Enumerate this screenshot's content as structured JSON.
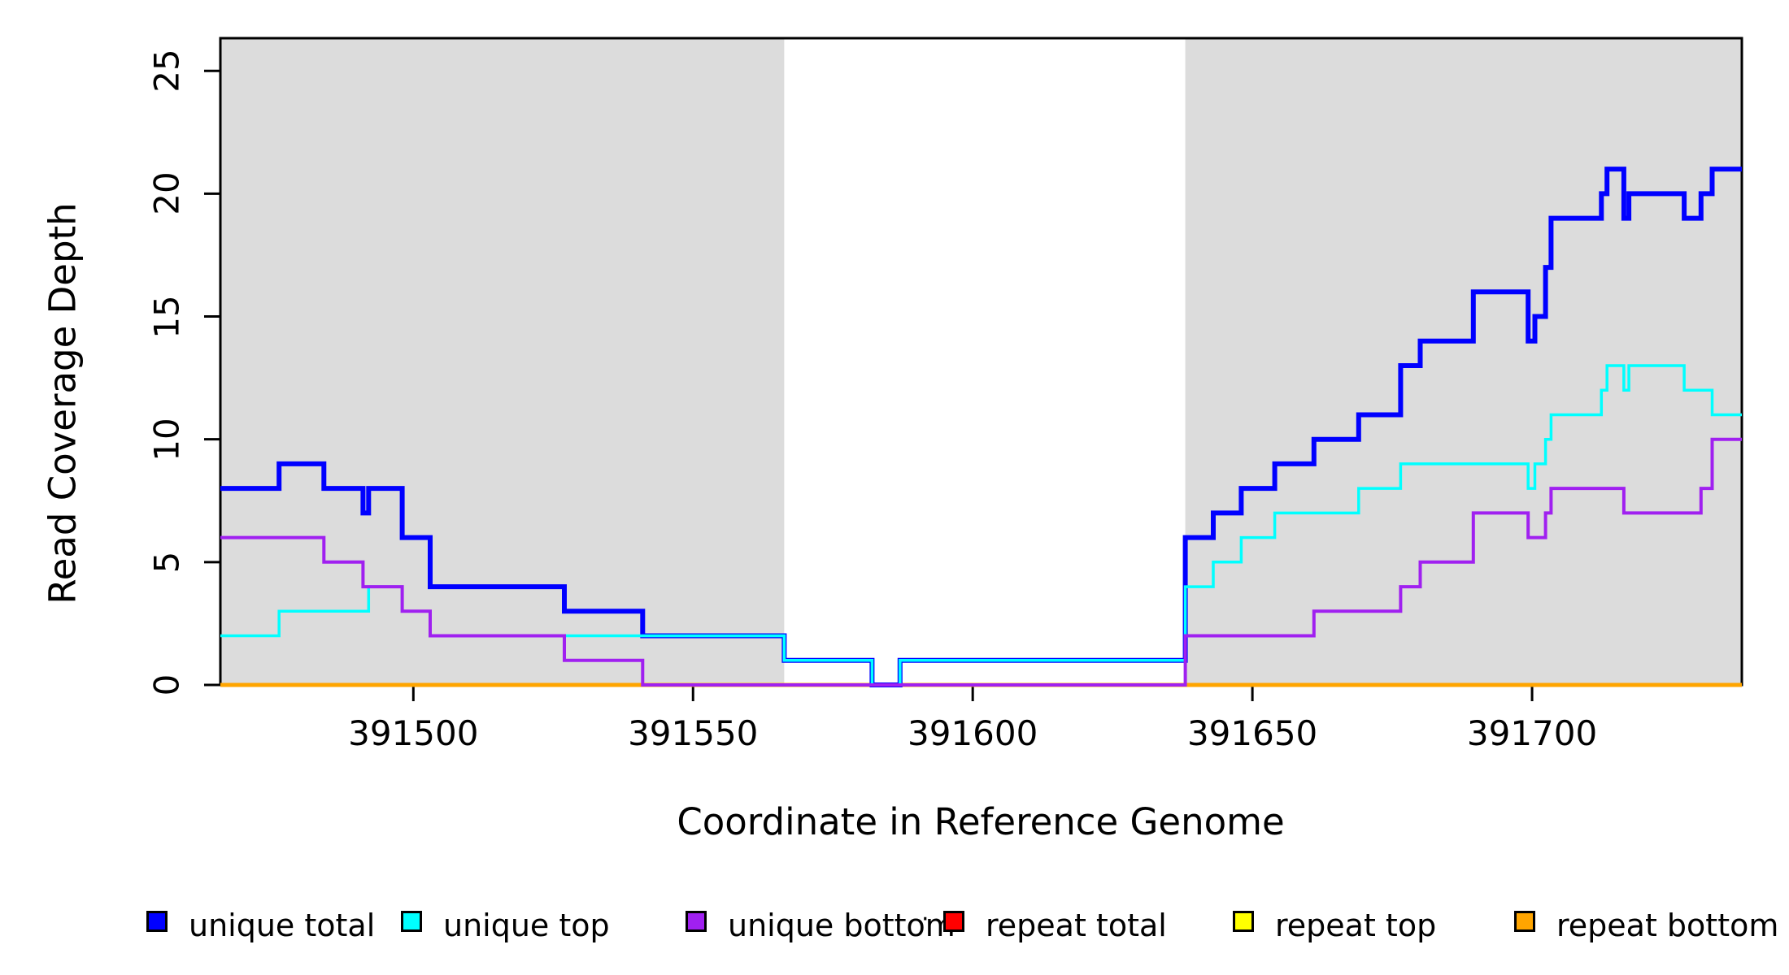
{
  "figure": {
    "background_color": "#ffffff",
    "plot_background_color": "#ffffff",
    "shaded_region_color": "#dcdcdc",
    "box_color": "#000000"
  },
  "x_axis": {
    "label": "Coordinate in Reference Genome",
    "ticks": [
      391500,
      391550,
      391600,
      391650,
      391700
    ],
    "range": [
      391465.5,
      391737.5
    ]
  },
  "y_axis": {
    "label": "Read Coverage Depth",
    "ticks": [
      0,
      5,
      10,
      15,
      20,
      25
    ],
    "range": [
      0,
      26.33
    ]
  },
  "legend": {
    "separator_dot": "·",
    "items": [
      {
        "label": "unique total",
        "color": "#0000ff"
      },
      {
        "label": "unique top",
        "color": "#00ffff"
      },
      {
        "label": "unique bottom",
        "color": "#a020f0"
      },
      {
        "label": "repeat total",
        "color": "#ff0000"
      },
      {
        "label": "repeat top",
        "color": "#ffff00"
      },
      {
        "label": "repeat bottom",
        "color": "#ffa500"
      }
    ]
  },
  "chart_data": {
    "type": "line",
    "style": "step-after",
    "title": "",
    "xlabel": "Coordinate in Reference Genome",
    "ylabel": "Read Coverage Depth",
    "xlim": [
      391465.5,
      391737.5
    ],
    "ylim": [
      0,
      26.33
    ],
    "grid": false,
    "legend_position": "bottom",
    "shaded_regions": [
      {
        "from": 391465.5,
        "to": 391566.3
      },
      {
        "from": 391638.0,
        "to": 391737.5
      }
    ],
    "series": [
      {
        "name": "repeat total",
        "color": "#ff0000",
        "line_width": 4,
        "points": [
          [
            391465.5,
            0
          ],
          [
            391737.5,
            0
          ]
        ]
      },
      {
        "name": "repeat top",
        "color": "#ffff00",
        "line_width": 4,
        "points": [
          [
            391465.5,
            0
          ],
          [
            391737.5,
            0
          ]
        ]
      },
      {
        "name": "repeat bottom",
        "color": "#ffa500",
        "line_width": 5,
        "points": [
          [
            391465.5,
            0
          ],
          [
            391737.5,
            0
          ]
        ]
      },
      {
        "name": "unique total",
        "color": "#0000ff",
        "line_width": 6,
        "points": [
          [
            391465.5,
            8
          ],
          [
            391476,
            9
          ],
          [
            391484,
            8
          ],
          [
            391491,
            7
          ],
          [
            391492,
            8
          ],
          [
            391498,
            6
          ],
          [
            391503,
            4
          ],
          [
            391527,
            3
          ],
          [
            391541,
            2
          ],
          [
            391566.3,
            1
          ],
          [
            391582,
            0
          ],
          [
            391587,
            1
          ],
          [
            391638,
            6
          ],
          [
            391643,
            7
          ],
          [
            391648,
            8
          ],
          [
            391654,
            9
          ],
          [
            391661,
            10
          ],
          [
            391669,
            11
          ],
          [
            391676.5,
            13
          ],
          [
            391680,
            14
          ],
          [
            391689.5,
            16
          ],
          [
            391699.3,
            14
          ],
          [
            391700.5,
            15
          ],
          [
            391702.4,
            17
          ],
          [
            391703.4,
            19
          ],
          [
            391712.4,
            20
          ],
          [
            391713.4,
            21
          ],
          [
            391716.4,
            19
          ],
          [
            391717.3,
            20
          ],
          [
            391727.2,
            19
          ],
          [
            391730.2,
            20
          ],
          [
            391732.2,
            21
          ],
          [
            391737.5,
            21
          ]
        ]
      },
      {
        "name": "unique top",
        "color": "#00ffff",
        "line_width": 3.5,
        "points": [
          [
            391465.5,
            2
          ],
          [
            391476,
            3
          ],
          [
            391492,
            4
          ],
          [
            391498,
            3
          ],
          [
            391503,
            2
          ],
          [
            391566.3,
            1
          ],
          [
            391582,
            0
          ],
          [
            391587,
            1
          ],
          [
            391638,
            4
          ],
          [
            391643,
            5
          ],
          [
            391648,
            6
          ],
          [
            391654,
            7
          ],
          [
            391669,
            8
          ],
          [
            391676.5,
            9
          ],
          [
            391699.3,
            8
          ],
          [
            391700.5,
            9
          ],
          [
            391702.4,
            10
          ],
          [
            391703.4,
            11
          ],
          [
            391712.4,
            12
          ],
          [
            391713.4,
            13
          ],
          [
            391716.4,
            12
          ],
          [
            391717.3,
            13
          ],
          [
            391727.2,
            12
          ],
          [
            391732.2,
            11
          ],
          [
            391737.5,
            11
          ]
        ]
      },
      {
        "name": "unique bottom",
        "color": "#a020f0",
        "line_width": 4,
        "points": [
          [
            391465.5,
            6
          ],
          [
            391484,
            5
          ],
          [
            391491,
            4
          ],
          [
            391498,
            3
          ],
          [
            391503,
            2
          ],
          [
            391527,
            1
          ],
          [
            391541,
            0
          ],
          [
            391638,
            2
          ],
          [
            391661,
            3
          ],
          [
            391676.5,
            4
          ],
          [
            391680,
            5
          ],
          [
            391689.5,
            7
          ],
          [
            391699.3,
            6
          ],
          [
            391702.4,
            7
          ],
          [
            391703.4,
            8
          ],
          [
            391716.4,
            7
          ],
          [
            391730.2,
            8
          ],
          [
            391732.2,
            10
          ],
          [
            391737.5,
            10
          ]
        ]
      }
    ]
  }
}
